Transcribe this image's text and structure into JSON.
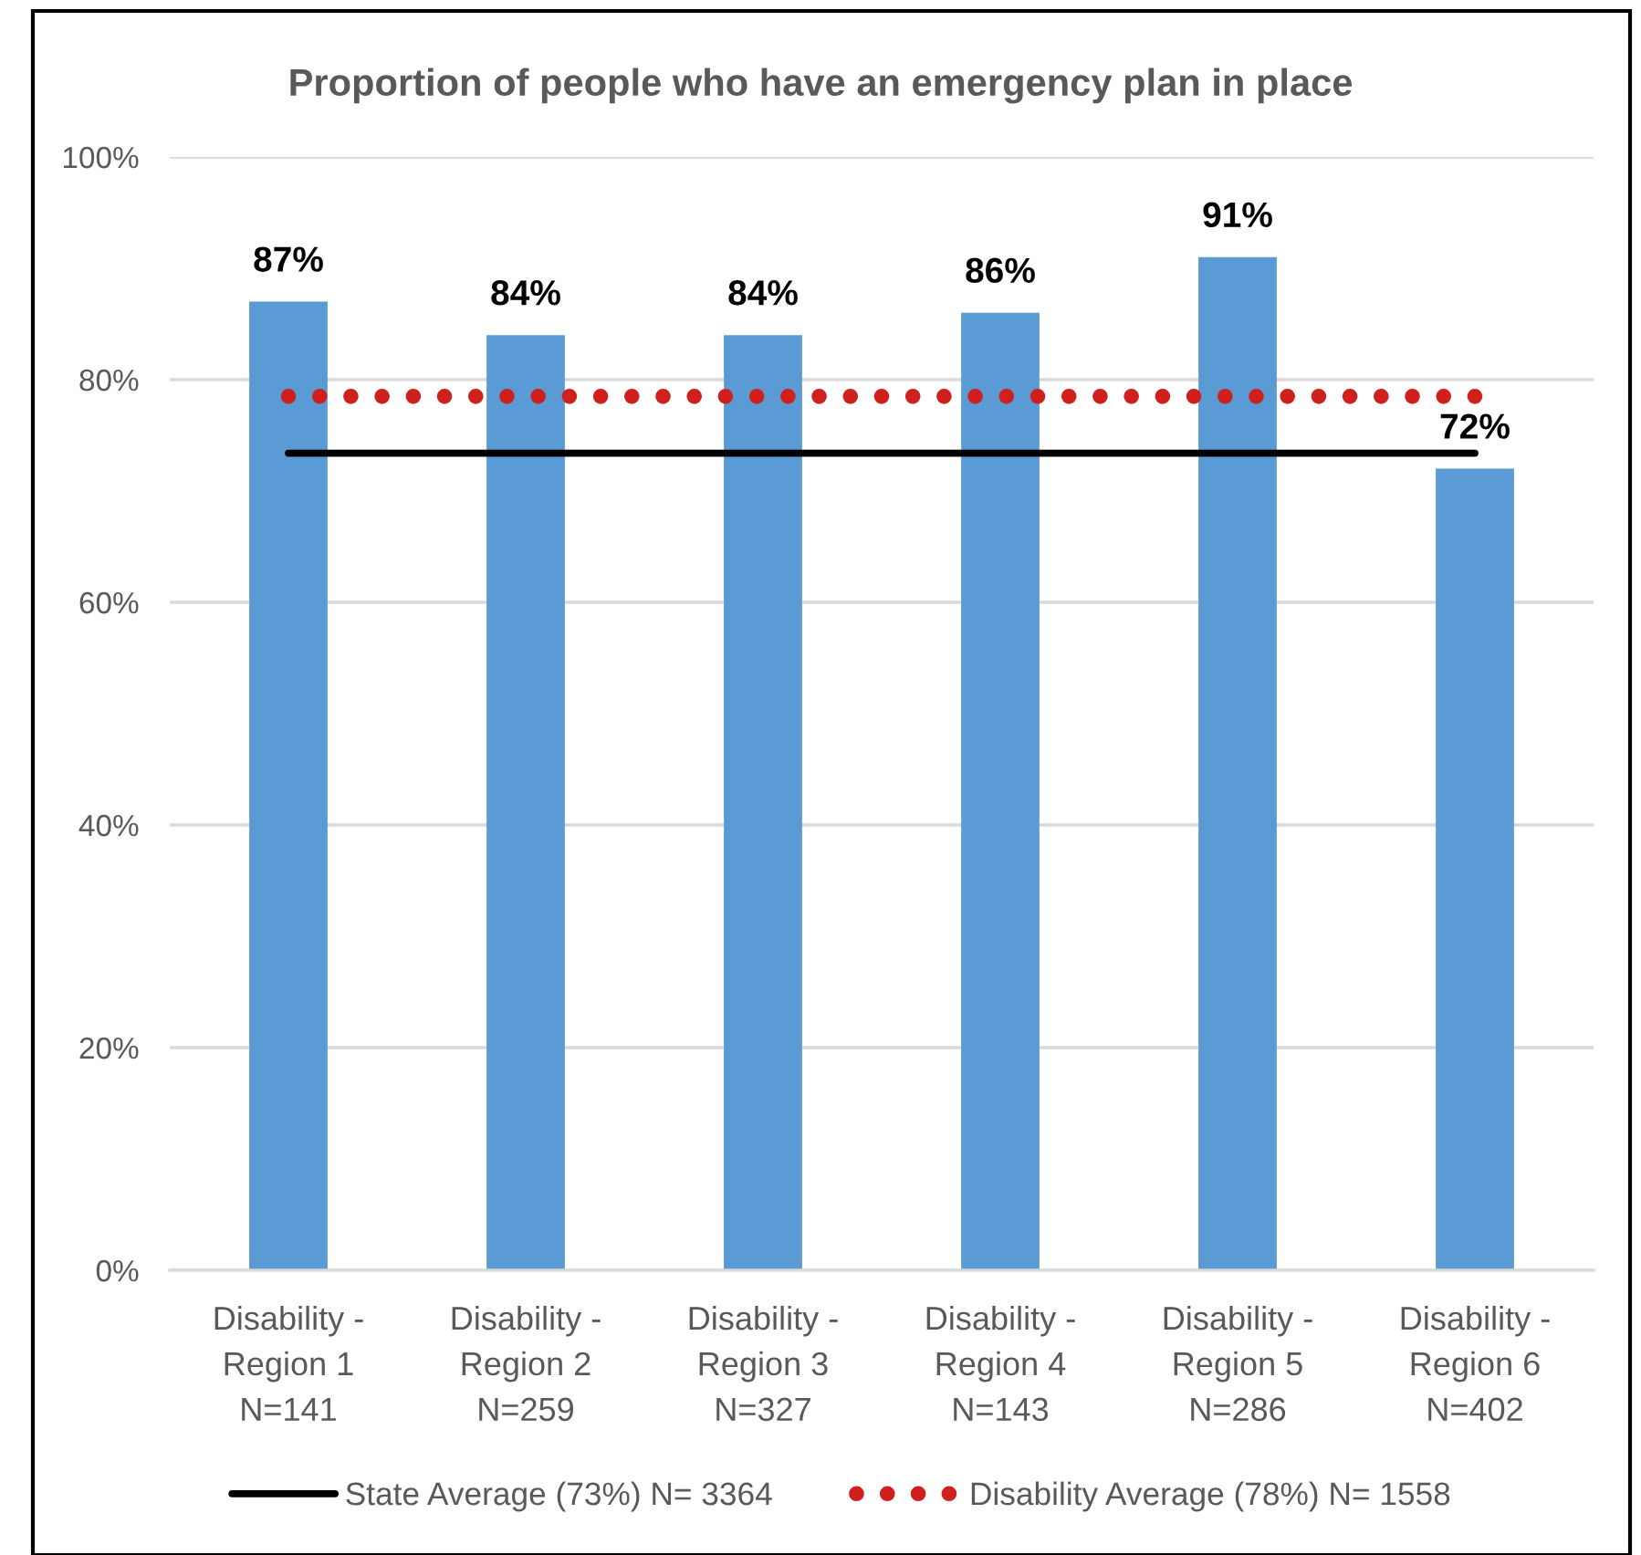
{
  "chart_data": {
    "type": "bar",
    "title": "Proportion of people who have an emergency plan in place",
    "categories": [
      "Disability -\nRegion 1\nN=141",
      "Disability -\nRegion 2\nN=259",
      "Disability -\nRegion 3\nN=327",
      "Disability -\nRegion 4\nN=143",
      "Disability -\nRegion 5\nN=286",
      "Disability -\nRegion 6\nN=402"
    ],
    "series": [
      {
        "color": "#5b9bd5",
        "values": [
          87,
          84,
          84,
          86,
          91,
          72
        ],
        "value_labels": [
          "87%",
          "84%",
          "84%",
          "86%",
          "91%",
          "72%"
        ]
      },
      {
        "type": "line",
        "name": "State Average (73%) N= 3364",
        "color": "#000000",
        "values": [
          73.4,
          73.4,
          73.4,
          73.4,
          73.4,
          73.4
        ],
        "line_style": "solid"
      },
      {
        "type": "line",
        "name": "Disability Average (78%) N= 1558",
        "color": "#d0201e",
        "values": [
          78.5,
          78.5,
          78.5,
          78.5,
          78.5,
          78.5
        ],
        "line_style": "dotted"
      }
    ],
    "ylim": [
      0,
      100
    ],
    "yticks": [
      {
        "value": 0,
        "label": "0%"
      },
      {
        "value": 20,
        "label": "20%"
      },
      {
        "value": 40,
        "label": "40%"
      },
      {
        "value": 60,
        "label": "60%"
      },
      {
        "value": 80,
        "label": "80%"
      },
      {
        "value": 100,
        "label": "100%"
      }
    ],
    "grid": "y",
    "legend": "bottom"
  }
}
